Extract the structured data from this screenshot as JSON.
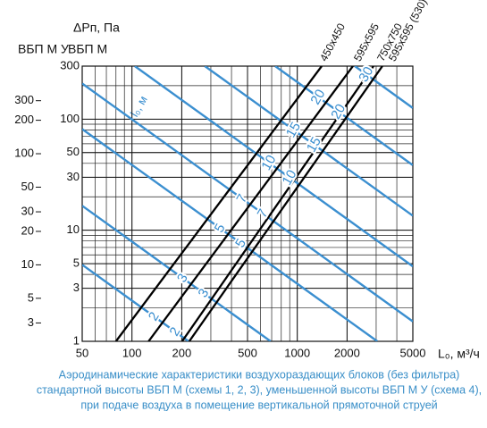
{
  "chart_data": {
    "type": "line",
    "y_label": "ΔPп, Па",
    "x_label": "L₀, м³/ч",
    "y_axis_name": "ВБП М",
    "y2_axis_name": "ВБП М У",
    "throw_label": "l₀, м",
    "log_x": true,
    "log_y": true,
    "grid": true,
    "xlim": [
      50,
      5000
    ],
    "xticks": [
      50,
      100,
      200,
      500,
      1000,
      2000,
      5000
    ],
    "ylim": [
      1,
      300
    ],
    "yticks": [
      1,
      3,
      5,
      10,
      30,
      50,
      100,
      300
    ],
    "y2lim": [
      2.05,
      614
    ],
    "y2ticks": [
      3,
      5,
      10,
      20,
      30,
      50,
      100,
      200,
      300
    ],
    "series": [
      {
        "name": "450x450",
        "color": "#000000",
        "x": [
          80,
          1405
        ],
        "values": [
          1,
          300
        ]
      },
      {
        "name": "595x595",
        "color": "#000000",
        "x": [
          126,
          2170
        ],
        "values": [
          1,
          300
        ]
      },
      {
        "name": "750x750",
        "color": "#000000",
        "x": [
          201,
          2890
        ],
        "values": [
          1,
          300
        ]
      },
      {
        "name": "595x595 (530)",
        "color": "#000000",
        "x": [
          222,
          3270
        ],
        "values": [
          1,
          300
        ]
      },
      {
        "name": "2",
        "color": "#3b8fd0",
        "x": [
          50,
          220
        ],
        "values": [
          4.89,
          1
        ]
      },
      {
        "name": "3",
        "color": "#3b8fd0",
        "x": [
          50,
          690
        ],
        "values": [
          16.6,
          1
        ]
      },
      {
        "name": "5",
        "color": "#3b8fd0",
        "x": [
          50,
          3050
        ],
        "values": [
          81.3,
          1
        ]
      },
      {
        "name": "7",
        "color": "#3b8fd0",
        "x": [
          50,
          5000
        ],
        "values": [
          209,
          1.51
        ]
      },
      {
        "name": "10",
        "color": "#3b8fd0",
        "x": [
          104,
          5000
        ],
        "values": [
          300,
          4.73
        ]
      },
      {
        "name": "15",
        "color": "#3b8fd0",
        "x": [
          276,
          5000
        ],
        "values": [
          300,
          13.5
        ]
      },
      {
        "name": "20",
        "color": "#3b8fd0",
        "x": [
          735,
          5000
        ],
        "values": [
          300,
          38.5
        ]
      },
      {
        "name": "30",
        "color": "#3b8fd0",
        "x": [
          2230,
          5000
        ],
        "values": [
          300,
          126
        ]
      }
    ],
    "caption": [
      "Аэродинамические характеристики воздухораздающих блоков (без фильтра)",
      "стандартной высоты ВБП М (схемы 1, 2, 3), уменьшенной высоты ВБП М У (схема 4),",
      "при подаче воздуха в помещение вертикальной прямоточной струей"
    ]
  }
}
